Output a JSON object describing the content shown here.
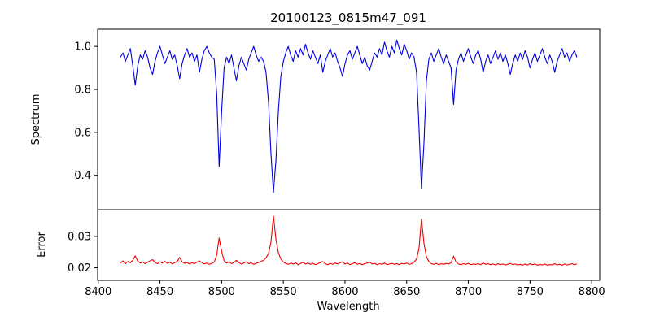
{
  "chart_data": {
    "type": "line",
    "title": "20100123_0815m47_091",
    "xlabel": "Wavelength",
    "xlim": [
      8399.5,
      8806.5
    ],
    "x_ticks": [
      8400,
      8450,
      8500,
      8550,
      8600,
      8650,
      8700,
      8750,
      8800
    ],
    "grid": false,
    "legend": "none",
    "panels": [
      {
        "ylabel": "Spectrum",
        "ylim": [
          0.24,
          1.08
        ],
        "y_ticks": [
          0.4,
          0.6,
          0.8,
          1.0
        ],
        "y_tick_decimals": 1,
        "series": {
          "name": "spectrum",
          "color": "#0000dd",
          "x_start": 8418,
          "x_step": 2,
          "values": [
            0.95,
            0.97,
            0.93,
            0.96,
            0.99,
            0.91,
            0.82,
            0.91,
            0.96,
            0.94,
            0.98,
            0.95,
            0.9,
            0.87,
            0.93,
            0.97,
            1.0,
            0.96,
            0.92,
            0.95,
            0.98,
            0.94,
            0.96,
            0.91,
            0.85,
            0.92,
            0.96,
            0.99,
            0.95,
            0.97,
            0.93,
            0.96,
            0.88,
            0.94,
            0.98,
            1.0,
            0.97,
            0.95,
            0.94,
            0.78,
            0.44,
            0.7,
            0.9,
            0.95,
            0.92,
            0.96,
            0.9,
            0.84,
            0.91,
            0.95,
            0.92,
            0.89,
            0.94,
            0.97,
            1.0,
            0.96,
            0.93,
            0.95,
            0.93,
            0.88,
            0.74,
            0.5,
            0.32,
            0.47,
            0.7,
            0.86,
            0.93,
            0.97,
            1.0,
            0.96,
            0.93,
            0.98,
            0.95,
            0.99,
            0.96,
            1.01,
            0.97,
            0.94,
            0.98,
            0.95,
            0.92,
            0.96,
            0.88,
            0.93,
            0.96,
            0.99,
            0.95,
            0.97,
            0.93,
            0.9,
            0.86,
            0.92,
            0.96,
            0.98,
            0.94,
            0.97,
            1.0,
            0.96,
            0.92,
            0.95,
            0.91,
            0.89,
            0.93,
            0.97,
            0.95,
            0.99,
            0.96,
            1.02,
            0.98,
            0.95,
            1.0,
            0.97,
            1.03,
            0.99,
            0.96,
            1.01,
            0.98,
            0.94,
            0.97,
            0.95,
            0.88,
            0.62,
            0.34,
            0.55,
            0.84,
            0.94,
            0.97,
            0.93,
            0.96,
            0.99,
            0.95,
            0.92,
            0.96,
            0.93,
            0.9,
            0.73,
            0.89,
            0.94,
            0.97,
            0.93,
            0.96,
            0.99,
            0.95,
            0.92,
            0.96,
            0.98,
            0.94,
            0.88,
            0.93,
            0.96,
            0.92,
            0.95,
            0.98,
            0.94,
            0.97,
            0.93,
            0.96,
            0.92,
            0.87,
            0.92,
            0.96,
            0.93,
            0.97,
            0.94,
            0.98,
            0.95,
            0.9,
            0.94,
            0.97,
            0.93,
            0.96,
            0.99,
            0.95,
            0.92,
            0.96,
            0.93,
            0.88,
            0.93,
            0.96,
            0.99,
            0.95,
            0.97,
            0.93,
            0.96,
            0.98,
            0.95
          ]
        }
      },
      {
        "ylabel": "Error",
        "ylim": [
          0.016,
          0.0385
        ],
        "y_ticks": [
          0.02,
          0.03
        ],
        "y_tick_decimals": 2,
        "series": {
          "name": "error",
          "color": "#ee0000",
          "x_start": 8418,
          "x_step": 2,
          "values": [
            0.0215,
            0.0222,
            0.0213,
            0.022,
            0.0216,
            0.0224,
            0.0238,
            0.0221,
            0.0215,
            0.0219,
            0.0213,
            0.0218,
            0.0222,
            0.0226,
            0.0217,
            0.0213,
            0.0219,
            0.0215,
            0.0221,
            0.0214,
            0.0218,
            0.0212,
            0.0216,
            0.022,
            0.0233,
            0.0219,
            0.0214,
            0.0217,
            0.0212,
            0.0216,
            0.0213,
            0.0218,
            0.0222,
            0.0216,
            0.0212,
            0.0215,
            0.0211,
            0.0214,
            0.0218,
            0.024,
            0.0295,
            0.0252,
            0.0222,
            0.0215,
            0.0219,
            0.0213,
            0.0217,
            0.0224,
            0.0216,
            0.0212,
            0.0215,
            0.0219,
            0.0213,
            0.0216,
            0.0211,
            0.0214,
            0.0217,
            0.022,
            0.0224,
            0.0232,
            0.0245,
            0.0282,
            0.0365,
            0.029,
            0.0248,
            0.0228,
            0.0218,
            0.0214,
            0.0211,
            0.0215,
            0.0212,
            0.0216,
            0.021,
            0.0214,
            0.0217,
            0.0212,
            0.0215,
            0.0211,
            0.0214,
            0.021,
            0.0213,
            0.0216,
            0.022,
            0.0213,
            0.021,
            0.0214,
            0.0211,
            0.0215,
            0.0212,
            0.0216,
            0.0219,
            0.0212,
            0.0215,
            0.021,
            0.0213,
            0.0216,
            0.0211,
            0.0214,
            0.021,
            0.0213,
            0.0215,
            0.0218,
            0.0212,
            0.0214,
            0.021,
            0.0213,
            0.0211,
            0.0215,
            0.021,
            0.0212,
            0.0214,
            0.0211,
            0.0213,
            0.021,
            0.0214,
            0.0212,
            0.0215,
            0.0211,
            0.0213,
            0.0218,
            0.0228,
            0.0262,
            0.0355,
            0.0278,
            0.0235,
            0.022,
            0.0213,
            0.0211,
            0.0214,
            0.021,
            0.0213,
            0.0211,
            0.0214,
            0.0212,
            0.0216,
            0.0237,
            0.0218,
            0.0212,
            0.021,
            0.0213,
            0.0211,
            0.0214,
            0.021,
            0.0212,
            0.0211,
            0.0213,
            0.021,
            0.0215,
            0.0211,
            0.0213,
            0.021,
            0.0212,
            0.0209,
            0.0213,
            0.021,
            0.0212,
            0.0209,
            0.0211,
            0.0214,
            0.021,
            0.0212,
            0.0209,
            0.0211,
            0.0208,
            0.0212,
            0.0209,
            0.0213,
            0.021,
            0.0212,
            0.0208,
            0.0211,
            0.0209,
            0.0212,
            0.0208,
            0.021,
            0.0209,
            0.0213,
            0.0209,
            0.0211,
            0.0208,
            0.0212,
            0.0209,
            0.0211,
            0.0213,
            0.021,
            0.0212
          ]
        }
      }
    ]
  }
}
